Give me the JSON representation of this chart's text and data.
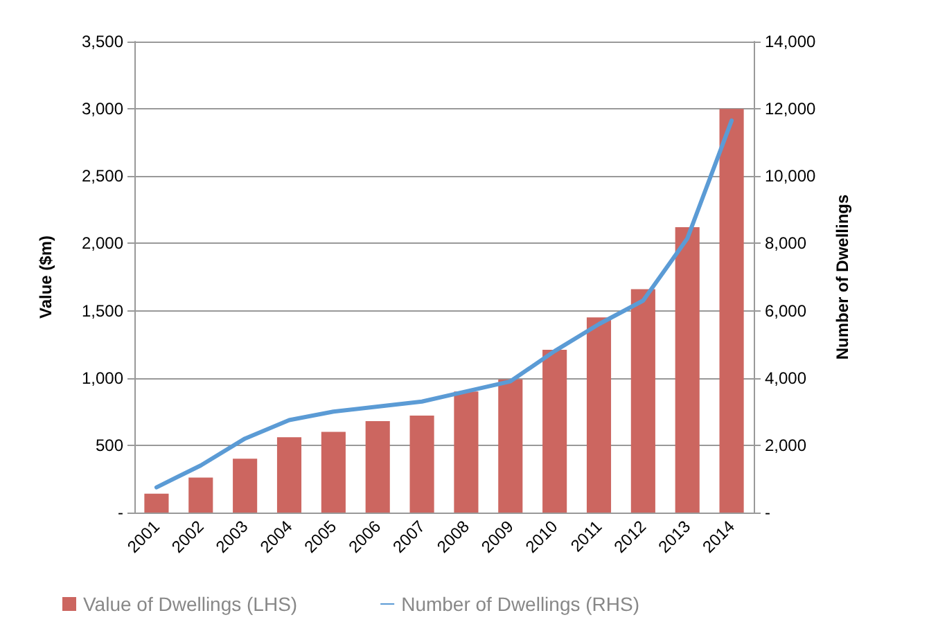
{
  "chart_data": {
    "type": "bar",
    "ylabel": "Value ($m)",
    "y2label": "Number of Dwellings",
    "categories": [
      "2001",
      "2002",
      "2003",
      "2004",
      "2005",
      "2006",
      "2007",
      "2008",
      "2009",
      "2010",
      "2011",
      "2012",
      "2013",
      "2014"
    ],
    "series": [
      {
        "name": "Value of Dwellings (LHS)",
        "color": "#cc6660",
        "values": [
          140,
          260,
          400,
          560,
          600,
          680,
          720,
          900,
          990,
          1210,
          1450,
          1660,
          2120,
          3000
        ]
      },
      {
        "name": "Number of Dwellings (RHS)",
        "type": "line",
        "axis": "y2",
        "color": "#5b9bd5",
        "values": [
          750,
          1400,
          2200,
          2750,
          3000,
          3150,
          3300,
          3600,
          3900,
          4800,
          5600,
          6300,
          8150,
          11650
        ]
      }
    ],
    "ylim": [
      0,
      3500
    ],
    "yticks": [
      {
        "value": 0,
        "label": "-"
      },
      500,
      {
        "value": 1000,
        "label": "1,000"
      },
      {
        "value": 1500,
        "label": "1,500"
      },
      {
        "value": 2000,
        "label": "2,000"
      },
      {
        "value": 2500,
        "label": "2,500"
      },
      {
        "value": 3000,
        "label": "3,000"
      },
      {
        "value": 3500,
        "label": "3,500"
      }
    ],
    "y2lim": [
      0,
      14000
    ],
    "y2ticks": [
      {
        "value": 0,
        "label": "-"
      },
      {
        "value": 2000,
        "label": "2,000"
      },
      {
        "value": 4000,
        "label": "4,000"
      },
      {
        "value": 6000,
        "label": "6,000"
      },
      {
        "value": 8000,
        "label": "8,000"
      },
      {
        "value": 10000,
        "label": "10,000"
      },
      {
        "value": 12000,
        "label": "12,000"
      },
      {
        "value": 14000,
        "label": "14,000"
      }
    ],
    "grid": "y",
    "legend": "bottom",
    "marker": "none",
    "line_style": "solid"
  }
}
